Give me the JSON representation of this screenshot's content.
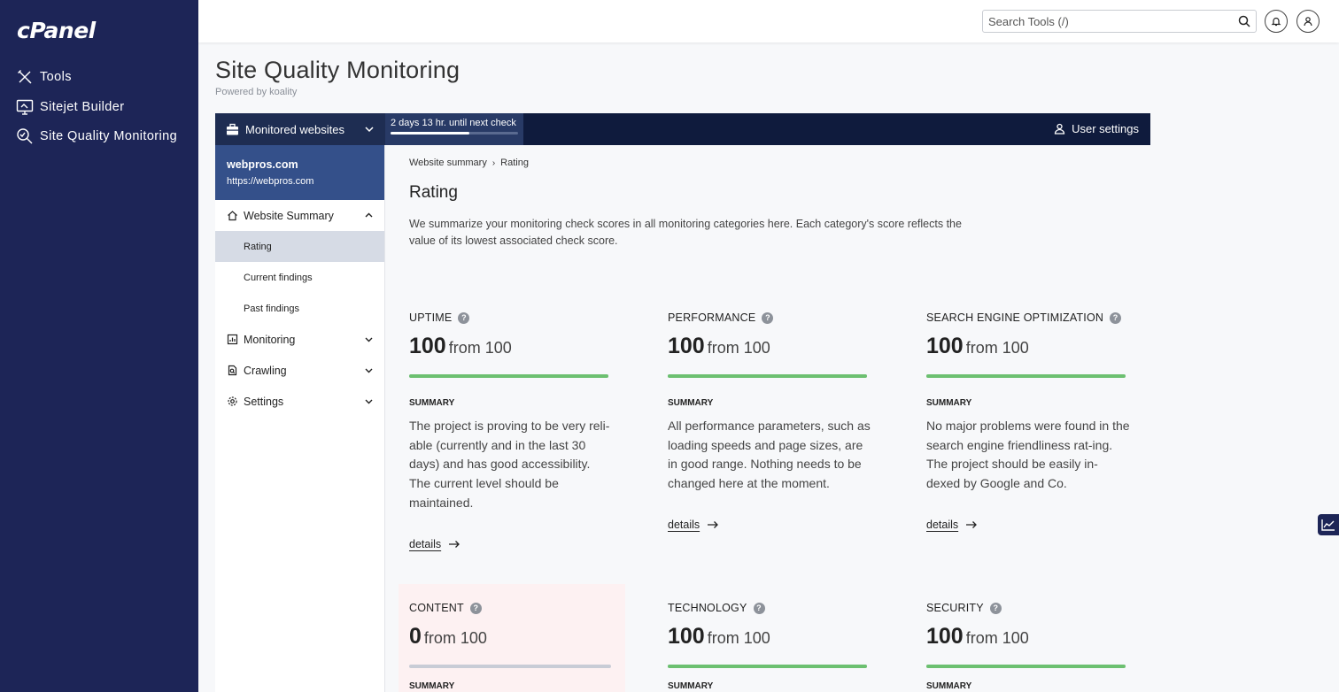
{
  "cpanel": {
    "logo": "cPanel",
    "nav": [
      {
        "label": "Tools",
        "icon": "tools-icon"
      },
      {
        "label": "Sitejet Builder",
        "icon": "monitor-icon"
      },
      {
        "label": "Site Quality Monitoring",
        "icon": "magnifier-icon"
      }
    ]
  },
  "header": {
    "search_placeholder": "Search Tools (/)"
  },
  "page": {
    "title": "Site Quality Monitoring",
    "subtitle": "Powered by koality"
  },
  "koality": {
    "monitored_label": "Monitored websites",
    "next_check": "2 days 13 hr. until next check",
    "next_check_progress": 0.62,
    "user_settings": "User settings",
    "site": {
      "name": "webpros.com",
      "url": "https://webpros.com"
    },
    "nav": {
      "summary": "Website Summary",
      "rating": "Rating",
      "current": "Current findings",
      "past": "Past findings",
      "monitoring": "Monitoring",
      "crawling": "Crawling",
      "settings": "Settings"
    }
  },
  "main": {
    "breadcrumb": [
      "Website summary",
      "Rating"
    ],
    "title": "Rating",
    "description": "We summarize your monitoring check scores in all monitoring categories here. Each category's score reflects the value of its lowest associated check score.",
    "from_text": "from 100",
    "summary_label": "SUMMARY",
    "details_label": "details",
    "cards": [
      {
        "label": "UPTIME",
        "score": "100",
        "fraction": 1.0,
        "summary": "The project is proving to be very reli-able (currently and in the last 30 days) and has good accessibility. The current level should be maintained."
      },
      {
        "label": "PERFORMANCE",
        "score": "100",
        "fraction": 1.0,
        "summary": "All performance parameters, such as loading speeds and page sizes, are in good range. Nothing needs to be changed here at the moment."
      },
      {
        "label": "SEARCH ENGINE OPTIMIZATION",
        "score": "100",
        "fraction": 1.0,
        "summary": "No major problems were found in the search engine friendliness rat-ing. The project should be easily in-dexed by Google and Co."
      },
      {
        "label": "CONTENT",
        "score": "0",
        "fraction": 0.0
      },
      {
        "label": "TECHNOLOGY",
        "score": "100",
        "fraction": 1.0
      },
      {
        "label": "SECURITY",
        "score": "100",
        "fraction": 1.0
      }
    ]
  }
}
